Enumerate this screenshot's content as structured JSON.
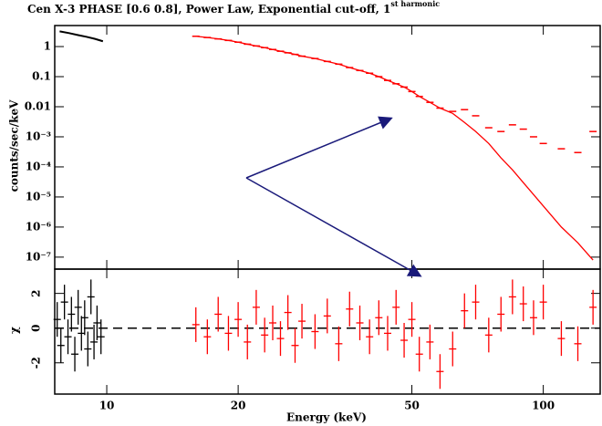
{
  "chart_data": [
    {
      "type": "spectrum",
      "title": "Cen X-3 PHASE [0.6 0.8], Power Law, Exponential cut-off, 1",
      "title_superscript": "st harmonic",
      "y_label": "counts/sec/keV",
      "log_x": true,
      "log_y": true,
      "xlim": [
        7.6,
        135
      ],
      "ylim": [
        4e-08,
        5
      ],
      "yticks": [
        {
          "value": 1e-07,
          "label": "10⁻⁷"
        },
        {
          "value": 1e-06,
          "label": "10⁻⁶"
        },
        {
          "value": 1e-05,
          "label": "10⁻⁵"
        },
        {
          "value": 0.0001,
          "label": "10⁻⁴"
        },
        {
          "value": 0.001,
          "label": "10⁻³"
        },
        0.01,
        0.1,
        1
      ],
      "series": [
        {
          "name": "data 1",
          "color": "#000000",
          "x": [
            7.8,
            8.2,
            8.6,
            9.0,
            9.4,
            9.8
          ],
          "values": [
            3.2,
            2.8,
            2.4,
            2.1,
            1.8,
            1.5
          ]
        },
        {
          "name": "data 2",
          "color": "#ff0000",
          "x": [
            16,
            17,
            18,
            19,
            20,
            21,
            22,
            23,
            24,
            25,
            26,
            27,
            28,
            30,
            32,
            34,
            36,
            38,
            40,
            42,
            44,
            46,
            48,
            50,
            52,
            55,
            58,
            62,
            66,
            70,
            75,
            80,
            85,
            90,
            95,
            100,
            110,
            120,
            130
          ],
          "values": [
            2.2,
            2.0,
            1.8,
            1.6,
            1.4,
            1.2,
            1.05,
            0.92,
            0.8,
            0.7,
            0.62,
            0.55,
            0.48,
            0.4,
            0.32,
            0.26,
            0.2,
            0.16,
            0.13,
            0.1,
            0.075,
            0.058,
            0.045,
            0.032,
            0.022,
            0.014,
            0.009,
            0.007,
            0.008,
            0.005,
            0.002,
            0.0015,
            0.0025,
            0.0018,
            0.001,
            0.0006,
            0.0004,
            0.0003,
            0.0015
          ],
          "model": [
            2.2,
            2.0,
            1.8,
            1.6,
            1.4,
            1.2,
            1.05,
            0.92,
            0.8,
            0.7,
            0.62,
            0.55,
            0.48,
            0.4,
            0.32,
            0.26,
            0.2,
            0.16,
            0.13,
            0.1,
            0.075,
            0.058,
            0.045,
            0.032,
            0.022,
            0.014,
            0.009,
            0.006,
            0.003,
            0.0015,
            0.0006,
            0.0002,
            8e-05,
            3e-05,
            1.2e-05,
            5e-06,
            1e-06,
            3e-07,
            8e-08
          ]
        }
      ]
    },
    {
      "type": "residuals",
      "x_label": "Energy (keV)",
      "y_label": "χ",
      "log_x": true,
      "xlim": [
        7.6,
        135
      ],
      "ylim": [
        -3.8,
        3.4
      ],
      "xticks": [
        10,
        20,
        50,
        100
      ],
      "yticks": [
        -2,
        0,
        2
      ],
      "series": [
        {
          "name": "data 1",
          "color": "#000000",
          "x": [
            7.7,
            7.85,
            8.0,
            8.15,
            8.3,
            8.45,
            8.6,
            8.75,
            8.9,
            9.05,
            9.2,
            9.35,
            9.5,
            9.7
          ],
          "values": [
            0.5,
            -1.0,
            1.5,
            -0.5,
            0.8,
            -1.5,
            1.2,
            -0.3,
            0.6,
            -1.2,
            1.8,
            -0.8,
            0.3,
            -0.5
          ],
          "errors": [
            1,
            1,
            1,
            1,
            1,
            1,
            1,
            1,
            1,
            1,
            1,
            1,
            1,
            1
          ]
        },
        {
          "name": "data 2",
          "color": "#ff0000",
          "x": [
            16,
            17,
            18,
            19,
            20,
            21,
            22,
            23,
            24,
            25,
            26,
            27,
            28,
            30,
            32,
            34,
            36,
            38,
            40,
            42,
            44,
            46,
            48,
            50,
            52,
            55,
            58,
            62,
            66,
            70,
            75,
            80,
            85,
            90,
            95,
            100,
            110,
            120,
            130
          ],
          "values": [
            0.2,
            -0.5,
            0.8,
            -0.3,
            0.5,
            -0.8,
            1.2,
            -0.4,
            0.3,
            -0.6,
            0.9,
            -1.0,
            0.4,
            -0.2,
            0.7,
            -0.9,
            1.1,
            0.3,
            -0.5,
            0.6,
            -0.3,
            1.2,
            -0.7,
            0.5,
            -1.5,
            -0.8,
            -2.5,
            -1.2,
            1.0,
            1.5,
            -0.4,
            0.8,
            1.8,
            1.4,
            0.6,
            1.5,
            -0.6,
            -0.9,
            1.2
          ],
          "errors": [
            1,
            1,
            1,
            1,
            1,
            1,
            1,
            1,
            1,
            1,
            1,
            1,
            1,
            1,
            1,
            1,
            1,
            1,
            1,
            1,
            1,
            1,
            1,
            1,
            1,
            1,
            1,
            1,
            1,
            1,
            1,
            1,
            1,
            1,
            1,
            1,
            1,
            1,
            1
          ]
        }
      ]
    }
  ]
}
